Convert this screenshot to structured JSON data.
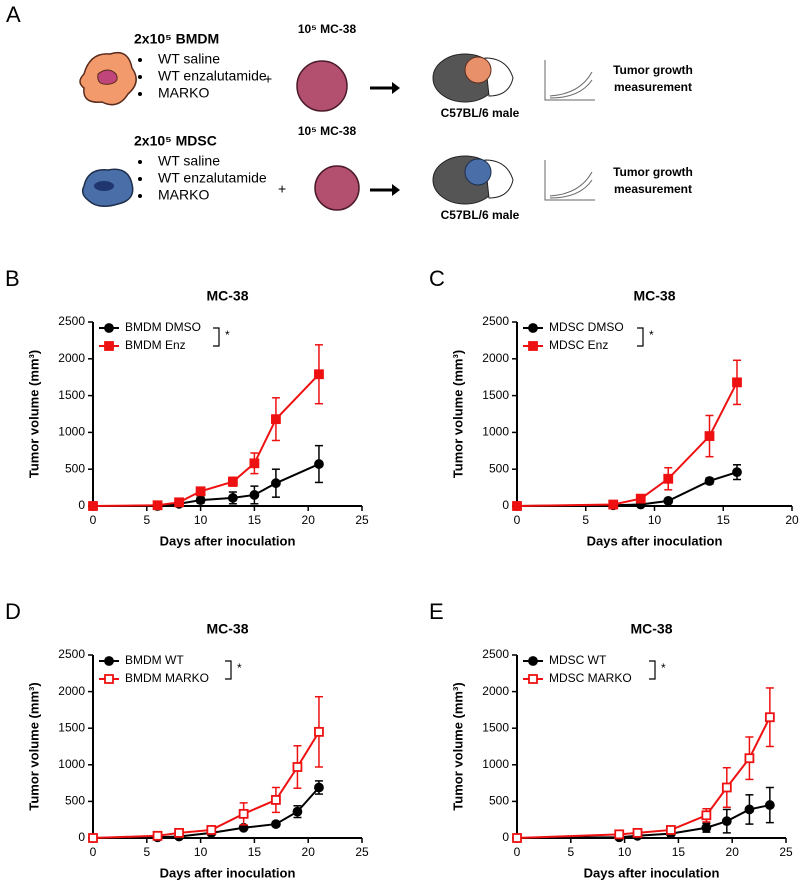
{
  "panel_a": {
    "label": "A",
    "plus": "+",
    "rows": [
      {
        "cells": "2x10⁵ BMDM",
        "items": [
          "WT saline",
          "WT enzalutamide",
          "MARKO"
        ],
        "tumor": "10⁵ MC-38",
        "mouse": "C57BL/6 male",
        "readout": [
          "Tumor growth",
          "measurement"
        ]
      },
      {
        "cells": "2x10⁵ MDSC",
        "items": [
          "WT saline",
          "WT enzalutamide",
          "MARKO"
        ],
        "tumor": "10⁵ MC-38",
        "mouse": "C57BL/6 male",
        "readout": [
          "Tumor growth",
          "measurement"
        ]
      }
    ]
  },
  "chart_data": [
    {
      "type": "line",
      "panel": "B",
      "title": "MC-38",
      "x_label": "Days after inoculation",
      "y_label": "Tumor volume (mm³)",
      "annotation": "*",
      "xlim": [
        0,
        25
      ],
      "xticks": [
        0,
        5,
        10,
        15,
        20,
        25
      ],
      "ylim": [
        0,
        2500
      ],
      "yticks": [
        0,
        500,
        1000,
        1500,
        2000,
        2500
      ],
      "series": [
        {
          "name": "BMDM DMSO",
          "color": "#000000",
          "marker": "circle",
          "filled": true,
          "x": [
            0,
            6,
            8,
            10,
            13,
            15,
            17,
            21
          ],
          "values": [
            0,
            0,
            30,
            80,
            110,
            150,
            310,
            570
          ],
          "errors": [
            0,
            0,
            10,
            40,
            80,
            120,
            190,
            250
          ]
        },
        {
          "name": "BMDM Enz",
          "color": "#ee1111",
          "marker": "square",
          "filled": true,
          "x": [
            0,
            6,
            8,
            10,
            13,
            15,
            17,
            21
          ],
          "values": [
            0,
            10,
            50,
            200,
            330,
            580,
            1180,
            1790
          ],
          "errors": [
            0,
            10,
            20,
            40,
            60,
            140,
            290,
            400
          ]
        }
      ]
    },
    {
      "type": "line",
      "panel": "C",
      "title": "MC-38",
      "x_label": "Days after inoculation",
      "y_label": "Tumor volume (mm³)",
      "annotation": "*",
      "xlim": [
        0,
        20
      ],
      "xticks": [
        0,
        5,
        10,
        15,
        20
      ],
      "ylim": [
        0,
        2500
      ],
      "yticks": [
        0,
        500,
        1000,
        1500,
        2000,
        2500
      ],
      "series": [
        {
          "name": "MDSC DMSO",
          "color": "#000000",
          "marker": "circle",
          "filled": true,
          "x": [
            0,
            7,
            9,
            11,
            14,
            16
          ],
          "values": [
            0,
            10,
            20,
            70,
            340,
            460
          ],
          "errors": [
            0,
            5,
            10,
            15,
            40,
            100
          ]
        },
        {
          "name": "MDSC Enz",
          "color": "#ee1111",
          "marker": "square",
          "filled": true,
          "x": [
            0,
            7,
            9,
            11,
            14,
            16
          ],
          "values": [
            0,
            20,
            100,
            370,
            950,
            1680
          ],
          "errors": [
            0,
            10,
            30,
            150,
            280,
            300
          ]
        }
      ]
    },
    {
      "type": "line",
      "panel": "D",
      "title": "MC-38",
      "x_label": "Days after inoculation",
      "y_label": "Tumor volume (mm³)",
      "annotation": "*",
      "xlim": [
        0,
        25
      ],
      "xticks": [
        0,
        5,
        10,
        15,
        20,
        25
      ],
      "ylim": [
        0,
        2500
      ],
      "yticks": [
        0,
        500,
        1000,
        1500,
        2000,
        2500
      ],
      "series": [
        {
          "name": "BMDM WT",
          "color": "#000000",
          "marker": "circle",
          "filled": true,
          "x": [
            0,
            6,
            8,
            11,
            14,
            17,
            19,
            21
          ],
          "values": [
            0,
            10,
            20,
            70,
            140,
            190,
            360,
            690
          ],
          "errors": [
            0,
            5,
            10,
            20,
            20,
            30,
            80,
            90
          ]
        },
        {
          "name": "BMDM MARKO",
          "color": "#ee1111",
          "marker": "square",
          "filled": false,
          "x": [
            0,
            6,
            8,
            11,
            14,
            17,
            19,
            21
          ],
          "values": [
            0,
            30,
            70,
            110,
            330,
            520,
            970,
            1450
          ],
          "errors": [
            0,
            20,
            30,
            30,
            150,
            170,
            290,
            480
          ]
        }
      ]
    },
    {
      "type": "line",
      "panel": "E",
      "title": "MC-38",
      "x_label": "Days after inoculation",
      "y_label": "Tumor volume (mm³)",
      "annotation": "*",
      "xlim": [
        0,
        25
      ],
      "xticks": [
        0,
        5,
        10,
        15,
        20,
        25
      ],
      "ylim": [
        0,
        2500
      ],
      "yticks": [
        0,
        500,
        1000,
        1500,
        2000,
        2500
      ],
      "series": [
        {
          "name": "MDSC WT",
          "color": "#000000",
          "marker": "circle",
          "filled": true,
          "x": [
            0,
            9.5,
            11.2,
            14.3,
            17.6,
            19.5,
            21.6,
            23.5
          ],
          "values": [
            0,
            10,
            30,
            60,
            140,
            230,
            390,
            450
          ],
          "errors": [
            0,
            5,
            10,
            20,
            60,
            160,
            200,
            240
          ]
        },
        {
          "name": "MDSC MARKO",
          "color": "#ee1111",
          "marker": "square",
          "filled": false,
          "x": [
            0,
            9.5,
            11.2,
            14.3,
            17.6,
            19.5,
            21.6,
            23.5
          ],
          "values": [
            0,
            50,
            70,
            110,
            310,
            690,
            1090,
            1650
          ],
          "errors": [
            0,
            20,
            20,
            30,
            90,
            270,
            290,
            400
          ]
        }
      ]
    }
  ]
}
